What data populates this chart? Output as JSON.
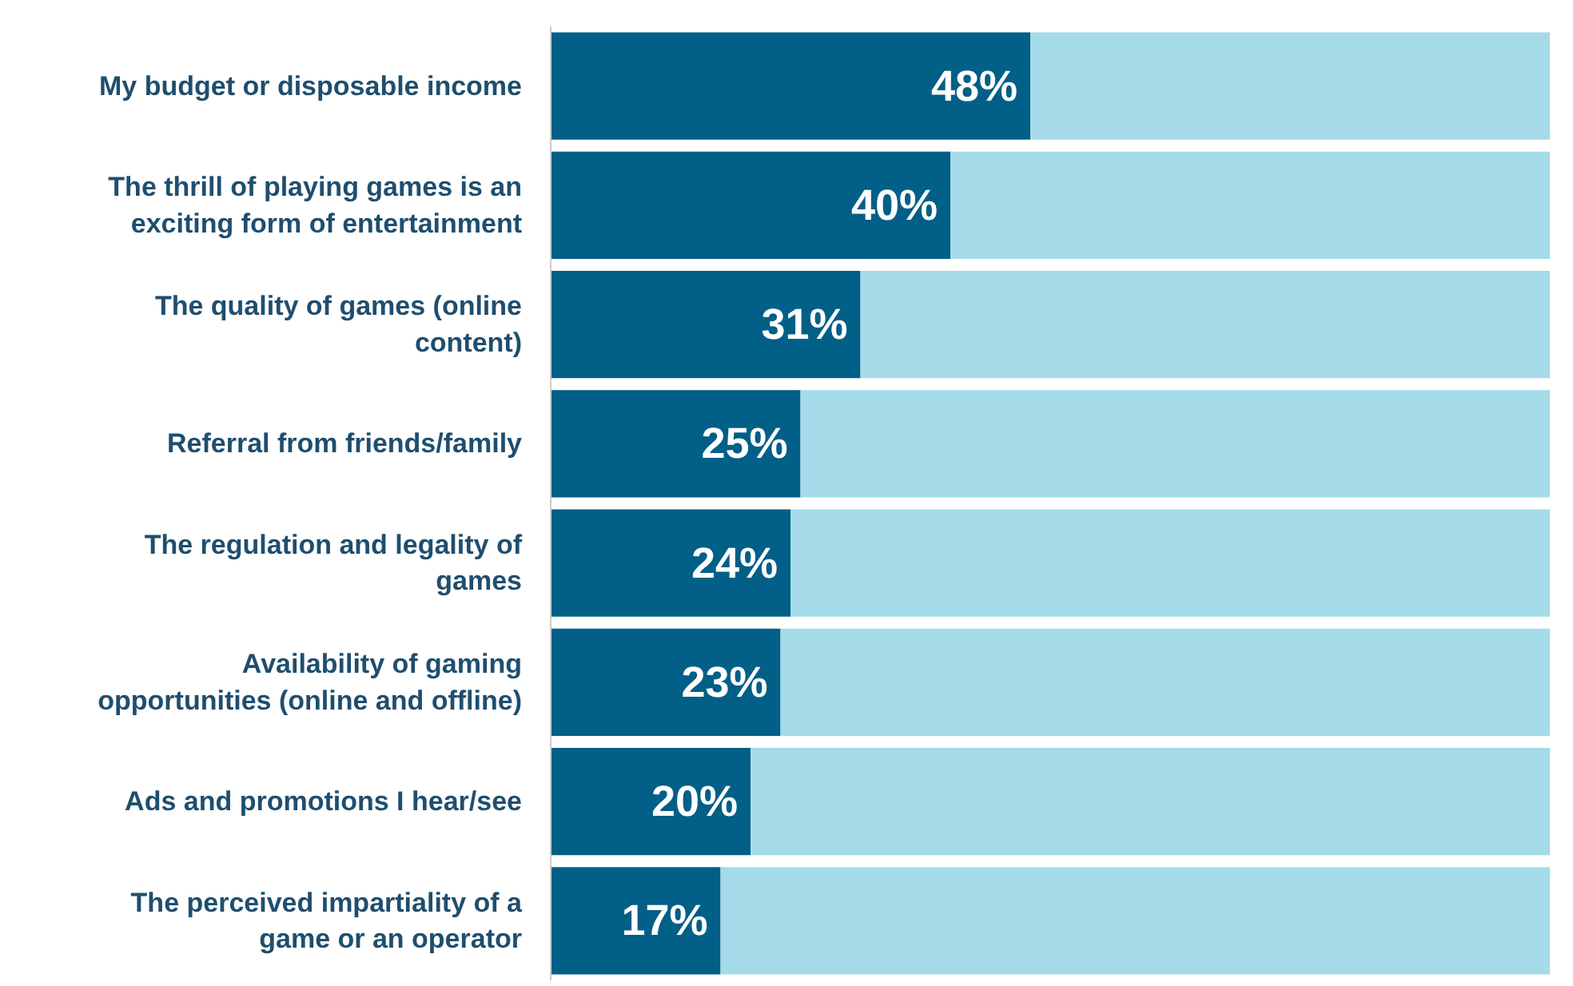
{
  "chart_data": {
    "type": "bar",
    "orientation": "horizontal",
    "stacked": true,
    "tick_labels": "y",
    "categories": [
      "My budget or disposable income",
      "The thrill of playing games is an exciting form of entertainment",
      "The quality of games (online content)",
      "Referral from friends/family",
      "The regulation and legality of games",
      "Availability of gaming opportunities (online and offline)",
      "Ads and promotions I hear/see",
      "The perceived impartiality of a game or an operator"
    ],
    "series": [
      {
        "color": "#025f87",
        "values": [
          48,
          40,
          31,
          25,
          24,
          23,
          20,
          17
        ],
        "value_labels": [
          "48%",
          "40%",
          "31%",
          "25%",
          "24%",
          "23%",
          "20%",
          "17%"
        ]
      },
      {
        "color": "#a5dbe8",
        "values": [
          52,
          60,
          69,
          75,
          76,
          77,
          80,
          83
        ]
      }
    ]
  }
}
